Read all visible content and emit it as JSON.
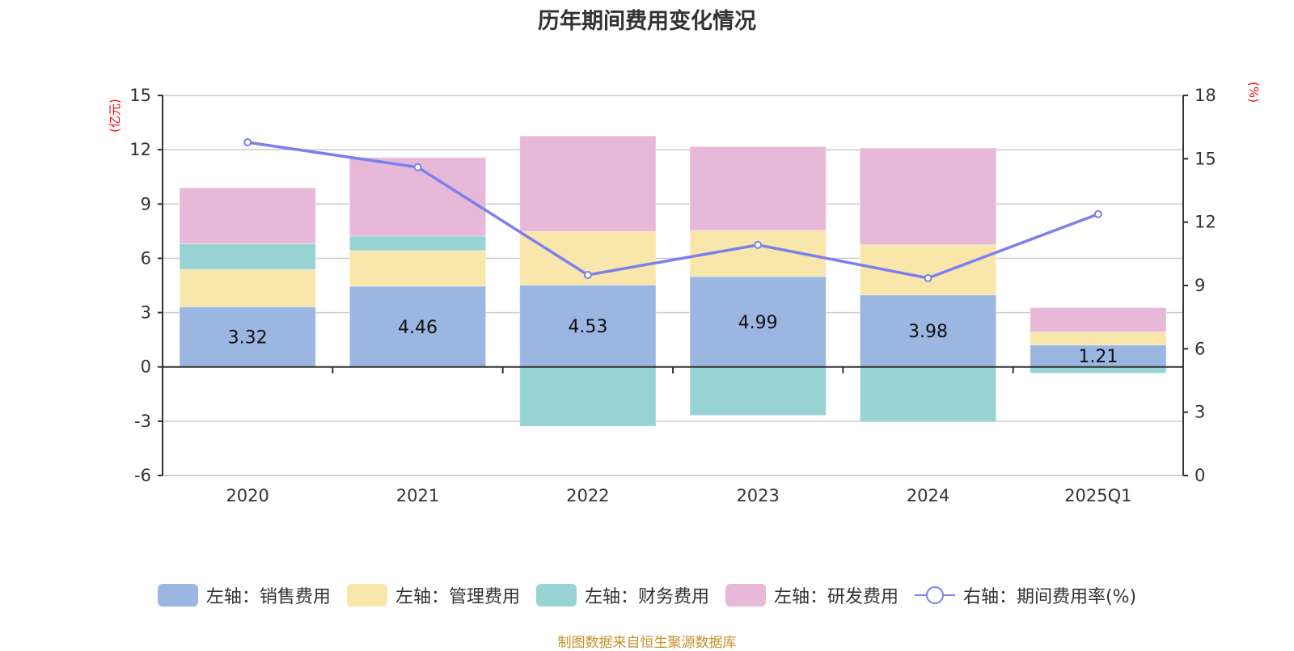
{
  "chart_data": {
    "type": "bar",
    "title": "历年期间费用变化情况",
    "categories": [
      "2020",
      "2021",
      "2022",
      "2023",
      "2024",
      "2025Q1"
    ],
    "stacked": true,
    "left_axis": {
      "label": "(亿元)",
      "ylim": [
        -6,
        15
      ],
      "ticks": [
        -6,
        -3,
        0,
        3,
        6,
        9,
        12,
        15
      ]
    },
    "right_axis": {
      "label": "(%)",
      "ylim": [
        0,
        18
      ],
      "ticks": [
        0,
        3,
        6,
        9,
        12,
        15,
        18
      ]
    },
    "grid": true,
    "legend_position": "bottom",
    "series": [
      {
        "name": "左轴：销售费用",
        "axis": "left",
        "kind": "bar",
        "color": "#9bb6e0",
        "values": [
          3.32,
          4.46,
          4.53,
          4.99,
          3.98,
          1.21
        ],
        "show_labels": true
      },
      {
        "name": "左轴：管理费用",
        "axis": "left",
        "kind": "bar",
        "color": "#f8e6aa",
        "values": [
          2.06,
          1.97,
          2.95,
          2.55,
          2.77,
          0.72
        ],
        "show_labels": false
      },
      {
        "name": "左轴：财务费用",
        "axis": "left",
        "kind": "bar",
        "color": "#97d3d3",
        "values": [
          1.43,
          0.8,
          -3.28,
          -2.68,
          -3.04,
          -0.34
        ],
        "show_labels": false
      },
      {
        "name": "左轴：研发费用",
        "axis": "left",
        "kind": "bar",
        "color": "#e7b8d7",
        "values": [
          3.08,
          4.34,
          5.28,
          4.63,
          5.34,
          1.34
        ],
        "show_labels": false
      },
      {
        "name": "右轴：期间费用率(%)",
        "axis": "right",
        "kind": "line",
        "color": "#7b7ff0",
        "values": [
          15.78,
          14.6,
          9.5,
          10.92,
          9.35,
          12.38
        ]
      }
    ],
    "data_labels": [
      "3.32",
      "4.46",
      "4.53",
      "4.99",
      "3.98",
      "1.21"
    ]
  },
  "source_note": "制图数据来自恒生聚源数据库"
}
